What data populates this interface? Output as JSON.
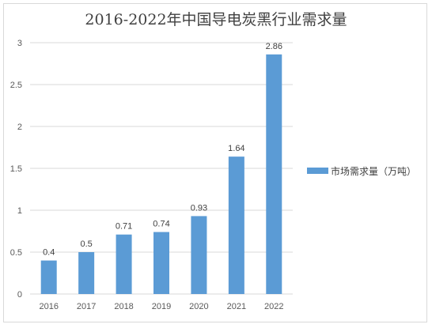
{
  "chart_data": {
    "type": "bar",
    "title": "2016-2022年中国导电炭黑行业需求量",
    "categories": [
      "2016",
      "2017",
      "2018",
      "2019",
      "2020",
      "2021",
      "2022"
    ],
    "series": [
      {
        "name": "市场需求量（万吨）",
        "values": [
          0.4,
          0.5,
          0.71,
          0.74,
          0.93,
          1.64,
          2.86
        ]
      }
    ],
    "data_labels": [
      "0.4",
      "0.5",
      "0.71",
      "0.74",
      "0.93",
      "1.64",
      "2.86"
    ],
    "yticks": [
      "0",
      "0.5",
      "1",
      "1.5",
      "2",
      "2.5",
      "3"
    ],
    "ylim": [
      0,
      3
    ],
    "grid": true,
    "legend_position": "right",
    "bar_color": "#5b9bd5"
  }
}
